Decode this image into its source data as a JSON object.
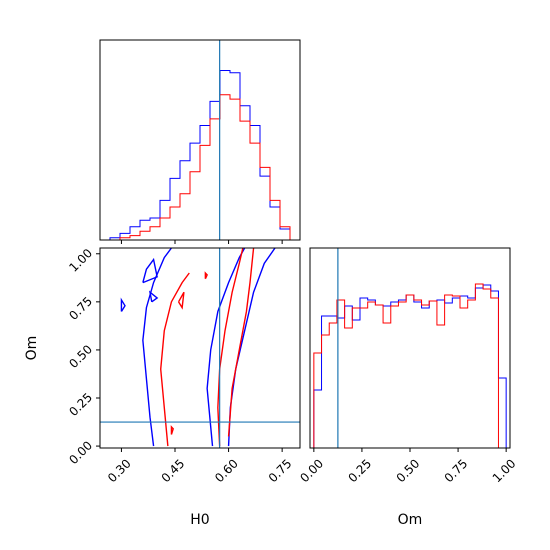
{
  "chart_data": [
    {
      "panel": "H0 marginal",
      "type": "step-histogram",
      "xlim": [
        0.24,
        0.8
      ],
      "bin_edges": [
        0.24,
        0.268,
        0.296,
        0.324,
        0.352,
        0.38,
        0.408,
        0.436,
        0.464,
        0.492,
        0.52,
        0.548,
        0.576,
        0.604,
        0.632,
        0.66,
        0.688,
        0.716,
        0.744,
        0.772,
        0.8
      ],
      "series": [
        {
          "color": "#0000ff",
          "values": [
            0,
            1,
            3,
            6,
            9,
            10,
            18,
            28,
            36,
            44,
            52,
            63,
            77,
            76,
            61,
            52,
            29,
            15,
            5,
            0
          ]
        },
        {
          "color": "#ff0000",
          "values": [
            0,
            0,
            1,
            2,
            4,
            6,
            10,
            15,
            21,
            31,
            43,
            55,
            66,
            64,
            54,
            44,
            33,
            18,
            6,
            0
          ]
        }
      ],
      "truth_line": {
        "x": 0.575
      }
    },
    {
      "panel": "H0 vs Om joint",
      "type": "contour",
      "xlim": [
        0.24,
        0.8
      ],
      "ylim": [
        -0.01,
        1.03
      ],
      "x_ticks": [
        "0.30",
        "0.45",
        "0.60",
        "0.75"
      ],
      "y_ticks": [
        "0.00",
        "0.25",
        "0.50",
        "0.75",
        "1.00"
      ],
      "xlabel": "H0",
      "ylabel": "Om",
      "series": [
        {
          "color": "#0000ff",
          "contours": [
            [
              [
                0.39,
                0.0
              ],
              [
                0.38,
                0.15
              ],
              [
                0.37,
                0.35
              ],
              [
                0.36,
                0.55
              ],
              [
                0.37,
                0.72
              ],
              [
                0.39,
                0.85
              ],
              [
                0.42,
                0.98
              ],
              [
                0.44,
                1.03
              ]
            ],
            [
              [
                0.555,
                0.0
              ],
              [
                0.55,
                0.1
              ],
              [
                0.54,
                0.3
              ],
              [
                0.55,
                0.5
              ],
              [
                0.57,
                0.7
              ],
              [
                0.6,
                0.85
              ],
              [
                0.63,
                0.98
              ],
              [
                0.645,
                1.03
              ]
            ],
            [
              [
                0.6,
                0.0
              ],
              [
                0.605,
                0.2
              ],
              [
                0.62,
                0.4
              ],
              [
                0.645,
                0.6
              ],
              [
                0.67,
                0.8
              ],
              [
                0.7,
                0.95
              ],
              [
                0.73,
                1.03
              ]
            ],
            [
              [
                0.36,
                0.85
              ],
              [
                0.4,
                0.88
              ],
              [
                0.39,
                0.97
              ],
              [
                0.37,
                0.92
              ],
              [
                0.36,
                0.85
              ]
            ],
            [
              [
                0.385,
                0.75
              ],
              [
                0.4,
                0.77
              ],
              [
                0.38,
                0.8
              ],
              [
                0.385,
                0.75
              ]
            ],
            [
              [
                0.3,
                0.7
              ],
              [
                0.31,
                0.73
              ],
              [
                0.3,
                0.76
              ],
              [
                0.3,
                0.7
              ]
            ]
          ]
        },
        {
          "color": "#ff0000",
          "contours": [
            [
              [
                0.43,
                0.0
              ],
              [
                0.42,
                0.2
              ],
              [
                0.41,
                0.4
              ],
              [
                0.42,
                0.6
              ],
              [
                0.44,
                0.75
              ],
              [
                0.47,
                0.85
              ],
              [
                0.49,
                0.9
              ]
            ],
            [
              [
                0.575,
                0.0
              ],
              [
                0.57,
                0.2
              ],
              [
                0.575,
                0.4
              ],
              [
                0.59,
                0.6
              ],
              [
                0.61,
                0.8
              ],
              [
                0.63,
                0.95
              ],
              [
                0.64,
                1.03
              ]
            ],
            [
              [
                0.6,
                0.05
              ],
              [
                0.61,
                0.3
              ],
              [
                0.63,
                0.5
              ],
              [
                0.65,
                0.7
              ],
              [
                0.66,
                0.85
              ],
              [
                0.67,
                1.03
              ]
            ],
            [
              [
                0.46,
                0.75
              ],
              [
                0.47,
                0.72
              ],
              [
                0.475,
                0.8
              ],
              [
                0.46,
                0.75
              ]
            ],
            [
              [
                0.535,
                0.87
              ],
              [
                0.54,
                0.89
              ],
              [
                0.535,
                0.9
              ],
              [
                0.535,
                0.87
              ]
            ],
            [
              [
                0.44,
                0.06
              ],
              [
                0.445,
                0.09
              ],
              [
                0.44,
                0.1
              ],
              [
                0.44,
                0.06
              ]
            ]
          ]
        }
      ],
      "truth_lines": {
        "x": 0.575,
        "y": 0.125
      }
    },
    {
      "panel": "Om marginal",
      "type": "step-histogram",
      "xlim": [
        -0.02,
        1.02
      ],
      "x_ticks": [
        "0.00",
        "0.25",
        "0.50",
        "0.75",
        "1.00"
      ],
      "xlabel": "Om",
      "bin_edges": [
        0.0,
        0.04,
        0.08,
        0.12,
        0.16,
        0.2,
        0.24,
        0.28,
        0.32,
        0.36,
        0.4,
        0.44,
        0.48,
        0.52,
        0.56,
        0.6,
        0.64,
        0.68,
        0.72,
        0.76,
        0.8,
        0.84,
        0.88,
        0.92,
        0.96,
        1.0
      ],
      "series": [
        {
          "color": "#0000ff",
          "values": [
            58,
            132,
            132,
            130,
            142,
            128,
            150,
            148,
            143,
            142,
            146,
            148,
            153,
            146,
            140,
            147,
            148,
            145,
            150,
            152,
            150,
            160,
            163,
            157,
            70
          ]
        },
        {
          "color": "#ff0000",
          "values": [
            95,
            113,
            125,
            148,
            120,
            140,
            140,
            146,
            143,
            125,
            142,
            146,
            153,
            148,
            143,
            147,
            123,
            153,
            152,
            140,
            148,
            164,
            159,
            150,
            0
          ]
        }
      ],
      "ylim": [
        0,
        200
      ],
      "truth_line": {
        "x": 0.125
      }
    }
  ]
}
